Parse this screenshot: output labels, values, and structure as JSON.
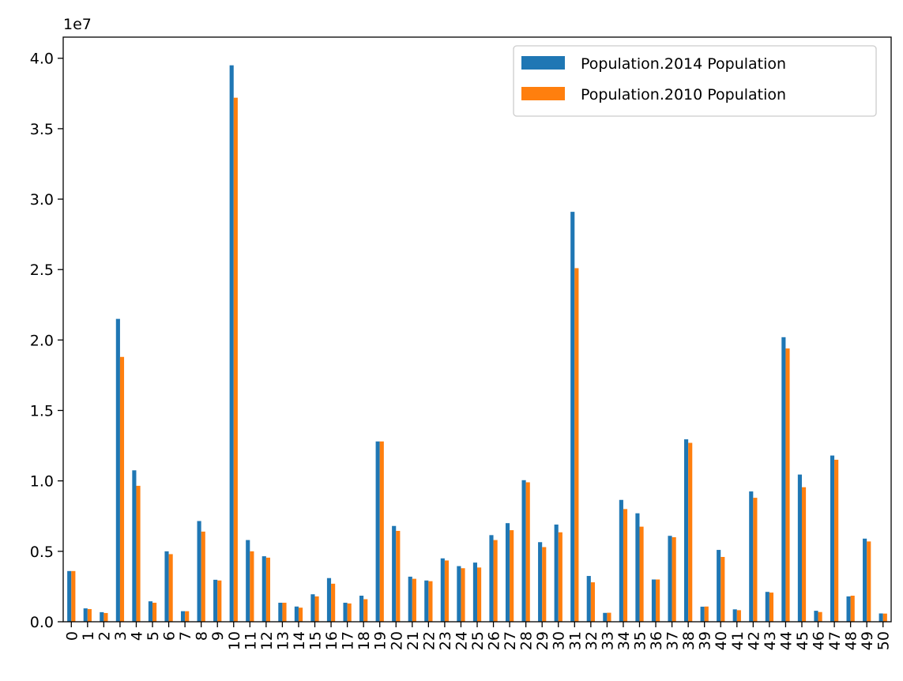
{
  "chart_data": {
    "type": "bar",
    "title": "",
    "xlabel": "",
    "ylabel": "",
    "y_scale_label": "1e7",
    "ylim": [
      0,
      41500000
    ],
    "yticks": [
      0,
      5000000,
      10000000,
      15000000,
      20000000,
      25000000,
      30000000,
      35000000,
      40000000
    ],
    "ytick_labels": [
      "0.0",
      "0.5",
      "1.0",
      "1.5",
      "2.0",
      "2.5",
      "3.0",
      "3.5",
      "4.0"
    ],
    "grid": false,
    "legend_position": "top-right",
    "categories": [
      "0",
      "1",
      "2",
      "3",
      "4",
      "5",
      "6",
      "7",
      "8",
      "9",
      "10",
      "11",
      "12",
      "13",
      "14",
      "15",
      "16",
      "17",
      "18",
      "19",
      "20",
      "21",
      "22",
      "23",
      "24",
      "25",
      "26",
      "27",
      "28",
      "29",
      "30",
      "31",
      "32",
      "33",
      "34",
      "35",
      "36",
      "37",
      "38",
      "39",
      "40",
      "41",
      "42",
      "43",
      "44",
      "45",
      "46",
      "47",
      "48",
      "49",
      "50"
    ],
    "series": [
      {
        "name": "Population.2014 Population",
        "color": "#1f77b4",
        "values": [
          3600000,
          950000,
          680000,
          21500000,
          10750000,
          1450000,
          5000000,
          750000,
          7150000,
          2980000,
          39500000,
          5800000,
          4650000,
          1350000,
          1080000,
          1950000,
          3100000,
          1350000,
          1850000,
          12800000,
          6800000,
          3200000,
          2930000,
          4500000,
          3950000,
          4200000,
          6150000,
          7000000,
          10050000,
          5650000,
          6900000,
          29100000,
          3250000,
          630000,
          8650000,
          7700000,
          3000000,
          6100000,
          12950000,
          1070000,
          5100000,
          880000,
          9250000,
          2120000,
          20200000,
          10450000,
          780000,
          11800000,
          1800000,
          5900000,
          590000
        ]
      },
      {
        "name": "Population.2010 Population",
        "color": "#ff7f0e",
        "values": [
          3600000,
          900000,
          620000,
          18800000,
          9650000,
          1350000,
          4800000,
          750000,
          6400000,
          2930000,
          37200000,
          5000000,
          4550000,
          1350000,
          1000000,
          1800000,
          2700000,
          1300000,
          1600000,
          12800000,
          6450000,
          3050000,
          2880000,
          4350000,
          3800000,
          3850000,
          5800000,
          6500000,
          9900000,
          5300000,
          6350000,
          25100000,
          2800000,
          640000,
          8000000,
          6750000,
          3000000,
          6000000,
          12700000,
          1080000,
          4600000,
          820000,
          8800000,
          2070000,
          19400000,
          9550000,
          690000,
          11500000,
          1850000,
          5700000,
          580000
        ]
      }
    ]
  }
}
